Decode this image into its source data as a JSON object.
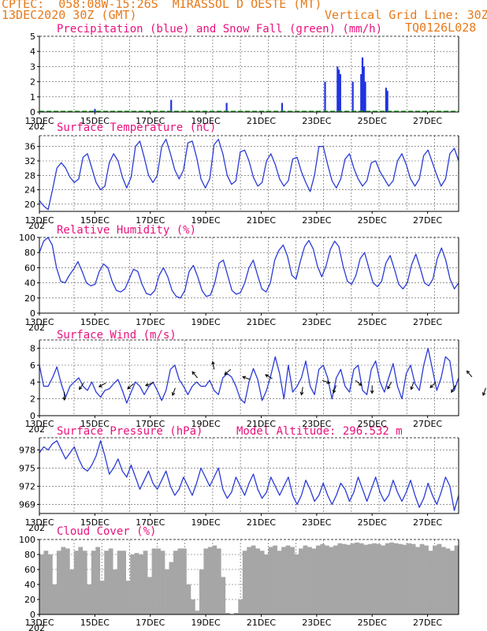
{
  "header": {
    "line1": "CPTEC:  058:08W-15:26S  MIRASSOL D OESTE (MT)",
    "line2_left": "13DEC2020 30Z (GMT)",
    "line2_right": "Vertical Grid Line: 30Z",
    "line3_right": "TQ0126L028",
    "year_tag": "202"
  },
  "colors": {
    "orange": "#e67a1c",
    "magenta": "#e8127d",
    "line": "#2b3bd6",
    "precip": "#1f34e0",
    "snow": "#1aa31a",
    "cloud": "#a6a6a6"
  },
  "x_labels": [
    "13DEC",
    "15DEC",
    "17DEC",
    "19DEC",
    "21DEC",
    "23DEC",
    "25DEC",
    "27DEC"
  ],
  "chart_data": [
    {
      "type": "bar",
      "title": "Precipitation (blue) and Snow Fall (green) (mm/h)",
      "x_unit": "day offset from 13DEC 00Z",
      "ylim": [
        0,
        5
      ],
      "yticks": [
        "0",
        "1",
        "2",
        "3",
        "4",
        "5"
      ],
      "series": [
        {
          "name": "Precipitation",
          "x": [
            2.0,
            4.75,
            6.75,
            8.75,
            10.3,
            10.75,
            10.8,
            10.85,
            11.3,
            11.6,
            11.65,
            11.7,
            11.75,
            12.5,
            12.55
          ],
          "values": [
            0.2,
            0.8,
            0.6,
            0.6,
            2.0,
            3.0,
            2.8,
            2.5,
            2.0,
            2.5,
            3.6,
            3.0,
            2.0,
            1.6,
            1.4
          ]
        },
        {
          "name": "Snow Fall",
          "x": [],
          "values": []
        }
      ]
    },
    {
      "type": "line",
      "title": "Surface Temperature (nC)",
      "ylim": [
        18,
        39
      ],
      "yticks": [
        "20",
        "24",
        "28",
        "32",
        "36"
      ],
      "series": [
        {
          "name": "Temperature",
          "values": [
            21,
            19.5,
            18.5,
            24,
            30,
            31.5,
            30,
            27.5,
            26,
            27,
            33,
            34,
            30,
            26,
            24,
            25,
            31.5,
            34,
            32,
            27.5,
            24.5,
            27.5,
            36,
            37.5,
            33,
            28,
            26,
            28,
            36,
            38,
            34,
            29.5,
            27,
            29.5,
            37,
            37.5,
            33,
            27,
            24.5,
            27,
            36.5,
            38,
            34,
            28,
            25.5,
            26.5,
            34.5,
            35,
            32,
            27.5,
            25,
            26,
            32,
            34,
            31,
            27,
            25,
            26.5,
            32.5,
            33,
            29,
            26,
            23.5,
            28,
            36,
            36,
            31,
            26.5,
            24.5,
            27,
            32.5,
            34,
            30,
            27,
            25,
            26.5,
            31.5,
            32,
            29,
            27,
            25,
            26.5,
            32,
            34,
            31,
            27,
            25,
            27,
            33.5,
            35,
            31.5,
            28,
            25,
            27,
            34,
            35.5,
            32
          ]
        }
      ]
    },
    {
      "type": "line",
      "title": "Relative Humidity (%)",
      "ylim": [
        0,
        100
      ],
      "yticks": [
        "0",
        "20",
        "40",
        "60",
        "80",
        "100"
      ],
      "series": [
        {
          "name": "Relative Humidity",
          "values": [
            80,
            95,
            100,
            90,
            60,
            42,
            40,
            50,
            58,
            68,
            55,
            40,
            36,
            38,
            55,
            65,
            60,
            42,
            30,
            28,
            32,
            45,
            58,
            55,
            38,
            26,
            24,
            30,
            50,
            60,
            48,
            30,
            22,
            20,
            30,
            55,
            63,
            48,
            30,
            22,
            24,
            40,
            66,
            70,
            50,
            30,
            25,
            27,
            40,
            60,
            70,
            50,
            32,
            28,
            40,
            70,
            83,
            90,
            75,
            50,
            45,
            68,
            88,
            96,
            85,
            62,
            48,
            62,
            84,
            95,
            88,
            62,
            42,
            38,
            50,
            72,
            80,
            60,
            40,
            35,
            42,
            66,
            76,
            58,
            38,
            32,
            40,
            64,
            78,
            60,
            40,
            36,
            45,
            72,
            86,
            70,
            45,
            32,
            40
          ]
        }
      ]
    },
    {
      "type": "line",
      "title": "Surface Wind (m/s)",
      "ylim": [
        0,
        9
      ],
      "yticks": [
        "0",
        "2",
        "4",
        "6",
        "8"
      ],
      "series": [
        {
          "name": "Wind speed",
          "values": [
            6,
            3.5,
            3.5,
            4.5,
            5.8,
            3.8,
            2.2,
            3.5,
            4,
            4.5,
            3.5,
            3,
            4,
            2.8,
            2.2,
            3,
            3.2,
            3.8,
            4.3,
            3,
            1.5,
            2.8,
            4,
            3.5,
            2.5,
            3.4,
            4,
            3,
            1.8,
            3,
            5.5,
            6,
            4.3,
            3.5,
            2.5,
            3.5,
            4,
            3.5,
            3.5,
            4.2,
            3,
            2.5,
            4.5,
            5,
            4.6,
            3.5,
            2,
            1.5,
            4,
            5.6,
            4.3,
            1.8,
            3,
            4.8,
            7,
            5,
            2,
            6,
            2.8,
            3.5,
            4.5,
            6.5,
            3.5,
            2.5,
            5.5,
            6,
            4.5,
            2,
            4.5,
            5.5,
            3.5,
            2.8,
            5.5,
            6,
            3,
            2.5,
            5.5,
            6.5,
            4,
            2.8,
            4.5,
            6.2,
            3.5,
            2,
            5,
            6,
            3.8,
            3,
            6,
            8,
            5.5,
            3,
            4.5,
            7,
            6.5,
            3,
            4.5
          ]
        }
      ],
      "arrows": [
        {
          "x": 0.9,
          "y": 2.8,
          "dir": 180
        },
        {
          "x": 1.6,
          "y": 3.9,
          "dir": 215
        },
        {
          "x": 2.4,
          "y": 3.9,
          "dir": 240
        },
        {
          "x": 3.4,
          "y": 3.8,
          "dir": 230
        },
        {
          "x": 4.1,
          "y": 3.9,
          "dir": 250
        },
        {
          "x": 4.9,
          "y": 3.3,
          "dir": 200
        },
        {
          "x": 5.7,
          "y": 4.5,
          "dir": 320
        },
        {
          "x": 6.3,
          "y": 5.5,
          "dir": 350
        },
        {
          "x": 6.9,
          "y": 5.5,
          "dir": 230
        },
        {
          "x": 7.6,
          "y": 4.3,
          "dir": 290
        },
        {
          "x": 8.4,
          "y": 4.4,
          "dir": 300
        },
        {
          "x": 9.5,
          "y": 3.4,
          "dir": 190
        },
        {
          "x": 10.2,
          "y": 4.2,
          "dir": 110
        },
        {
          "x": 10.7,
          "y": 3.6,
          "dir": 200
        },
        {
          "x": 11.4,
          "y": 4.2,
          "dir": 130
        },
        {
          "x": 12.0,
          "y": 3.6,
          "dir": 180
        },
        {
          "x": 12.7,
          "y": 4.0,
          "dir": 210
        },
        {
          "x": 13.5,
          "y": 4.0,
          "dir": 200
        },
        {
          "x": 14.3,
          "y": 4.0,
          "dir": 225
        },
        {
          "x": 15.0,
          "y": 3.6,
          "dir": 210
        },
        {
          "x": 15.6,
          "y": 4.6,
          "dir": 320
        },
        {
          "x": 16.1,
          "y": 3.3,
          "dir": 200
        },
        {
          "x": 16.9,
          "y": 3.6,
          "dir": 215
        },
        {
          "x": 17.6,
          "y": 3.5,
          "dir": 190
        },
        {
          "x": 18.3,
          "y": 3.7,
          "dir": 210
        },
        {
          "x": 19.1,
          "y": 3.6,
          "dir": 200
        },
        {
          "x": 19.9,
          "y": 3.9,
          "dir": 220
        },
        {
          "x": 20.7,
          "y": 3.6,
          "dir": 210
        },
        {
          "x": 21.4,
          "y": 4.0,
          "dir": 150
        },
        {
          "x": 22.0,
          "y": 3.4,
          "dir": 200
        },
        {
          "x": 22.9,
          "y": 3.8,
          "dir": 215
        },
        {
          "x": 23.7,
          "y": 3.8,
          "dir": 225
        }
      ]
    },
    {
      "type": "line",
      "title": "Surface Pressure (hPa)",
      "annotation": "Model Altitude: 296.532 m",
      "ylim": [
        967.5,
        980
      ],
      "yticks": [
        "969",
        "972",
        "975",
        "978"
      ],
      "series": [
        {
          "name": "Surface Pressure",
          "values": [
            977.5,
            978.5,
            978,
            979,
            979.5,
            978,
            976.5,
            977.5,
            978.5,
            976.5,
            975,
            974.5,
            975.5,
            977,
            979.5,
            977,
            974,
            975,
            976.5,
            974.5,
            973.5,
            975.5,
            973.5,
            971.5,
            973,
            974.5,
            972.5,
            971.5,
            973,
            974.5,
            972,
            970.5,
            971.5,
            973.5,
            972,
            970.5,
            972.5,
            975,
            973.5,
            972,
            973.5,
            975,
            971.5,
            970,
            971,
            973.5,
            972,
            970.5,
            972.5,
            974,
            971.5,
            970,
            971,
            973.5,
            972,
            970.5,
            972,
            973.5,
            970.5,
            969,
            970.5,
            973,
            971.5,
            969.5,
            970.5,
            972.5,
            970.5,
            969,
            970.5,
            972.5,
            971.5,
            969.5,
            971,
            973.5,
            971.5,
            969.5,
            971.5,
            973.5,
            971,
            969.5,
            970.5,
            973,
            971,
            969.5,
            971,
            973,
            970.5,
            968.5,
            970,
            972.5,
            970.5,
            969,
            971,
            973.5,
            972,
            968,
            970.5
          ]
        }
      ]
    },
    {
      "type": "area",
      "title": "Cloud Cover (%)",
      "ylim": [
        0,
        100
      ],
      "yticks": [
        "0",
        "20",
        "40",
        "60",
        "80",
        "100"
      ],
      "series": [
        {
          "name": "Cloud Cover",
          "values": [
            80,
            85,
            80,
            40,
            85,
            90,
            88,
            60,
            85,
            90,
            85,
            40,
            85,
            90,
            45,
            85,
            88,
            60,
            85,
            85,
            45,
            80,
            82,
            80,
            85,
            50,
            88,
            88,
            85,
            60,
            70,
            85,
            88,
            88,
            40,
            20,
            5,
            60,
            88,
            90,
            92,
            88,
            50,
            2,
            0,
            2,
            20,
            85,
            90,
            92,
            88,
            85,
            80,
            90,
            92,
            85,
            90,
            92,
            90,
            80,
            88,
            92,
            90,
            88,
            92,
            94,
            92,
            90,
            92,
            95,
            94,
            93,
            95,
            96,
            95,
            93,
            94,
            95,
            94,
            92,
            95,
            96,
            95,
            94,
            93,
            95,
            94,
            90,
            94,
            92,
            85,
            92,
            94,
            90,
            88,
            85,
            92
          ]
        }
      ]
    }
  ]
}
